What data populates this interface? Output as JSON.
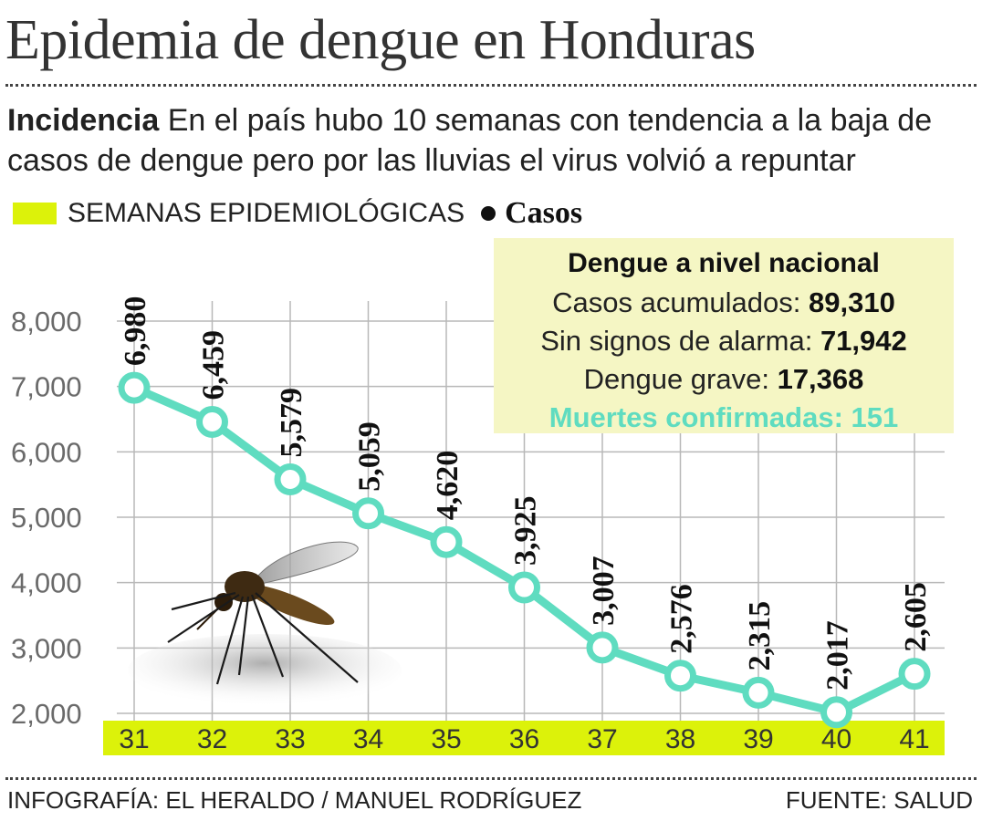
{
  "title": "Epidemia de dengue en Honduras",
  "subtitle": {
    "lead": "Incidencia",
    "text": " En el país hubo 10 semanas con tendencia a la baja de casos de dengue pero por las lluvias el virus volvió a repuntar"
  },
  "legend": {
    "weeks_label": "SEMANAS EPIDEMIOLÓGICAS",
    "cases_label": "Casos"
  },
  "infobox": {
    "title": "Dengue a nivel nacional",
    "accumulated_label": "Casos acumulados: ",
    "accumulated_value": "89,310",
    "no_alarm_label": "Sin signos de alarma: ",
    "no_alarm_value": "71,942",
    "severe_label": "Dengue grave: ",
    "severe_value": "17,368",
    "deaths_text": "Muertes confirmadas: 151"
  },
  "footer": {
    "credit": "INFOGRAFÍA: EL HERALDO / MANUEL RODRÍGUEZ",
    "source": "FUENTE: SALUD"
  },
  "colors": {
    "line": "#5fdcc0",
    "band": "#dcf20a",
    "infobox_bg": "#f5f6c4",
    "deaths_text": "#5fdcc0",
    "grid": "#b8b8b8"
  },
  "chart_data": {
    "type": "line",
    "categories": [
      "31",
      "32",
      "33",
      "34",
      "35",
      "36",
      "37",
      "38",
      "39",
      "40",
      "41"
    ],
    "values": [
      6980,
      6459,
      5579,
      5059,
      4620,
      3925,
      3007,
      2576,
      2315,
      2017,
      2605
    ],
    "value_labels": [
      "6,980",
      "6,459",
      "5,579",
      "5,059",
      "4,620",
      "3,925",
      "3,007",
      "2,576",
      "2,315",
      "2,017",
      "2,605"
    ],
    "y_ticks": [
      2000,
      3000,
      4000,
      5000,
      6000,
      7000,
      8000
    ],
    "y_tick_labels": [
      "2,000",
      "3,000",
      "4,000",
      "5,000",
      "6,000",
      "7,000",
      "8,000"
    ],
    "ylim": [
      2000,
      8000
    ],
    "grid": true,
    "legend_position": "top-left"
  }
}
